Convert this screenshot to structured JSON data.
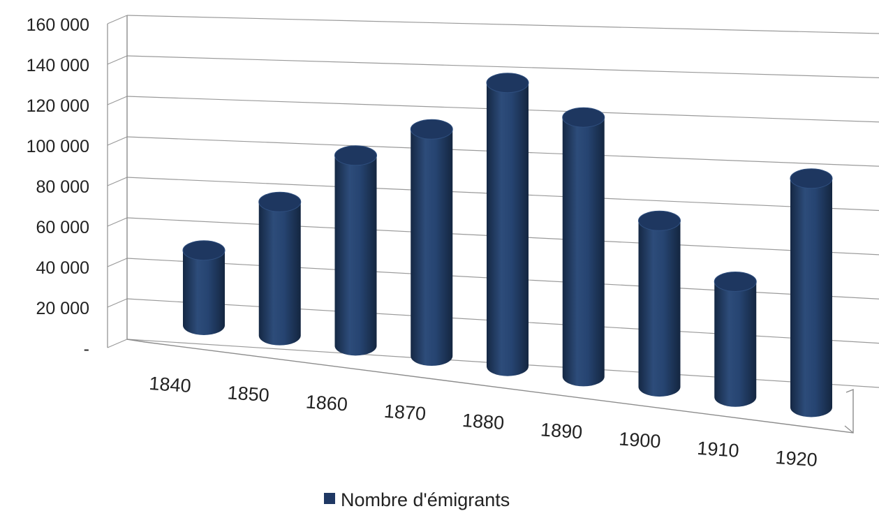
{
  "chart_data": {
    "type": "bar",
    "style": "3d-cylinder",
    "categories": [
      "1840",
      "1850",
      "1860",
      "1870",
      "1880",
      "1890",
      "1900",
      "1910",
      "1920"
    ],
    "series": [
      {
        "name": "Nombre d'émigrants",
        "values": [
          37000,
          66000,
          94000,
          112000,
          140000,
          128000,
          82000,
          57000,
          113000
        ]
      }
    ],
    "ylim": [
      0,
      160000
    ],
    "ytick_labels": [
      "-",
      "20 000",
      "40 000",
      "60 000",
      "80 000",
      "100 000",
      "120 000",
      "140 000",
      "160 000"
    ],
    "grid": true,
    "legend_position": "bottom",
    "color": "#1f3864"
  }
}
